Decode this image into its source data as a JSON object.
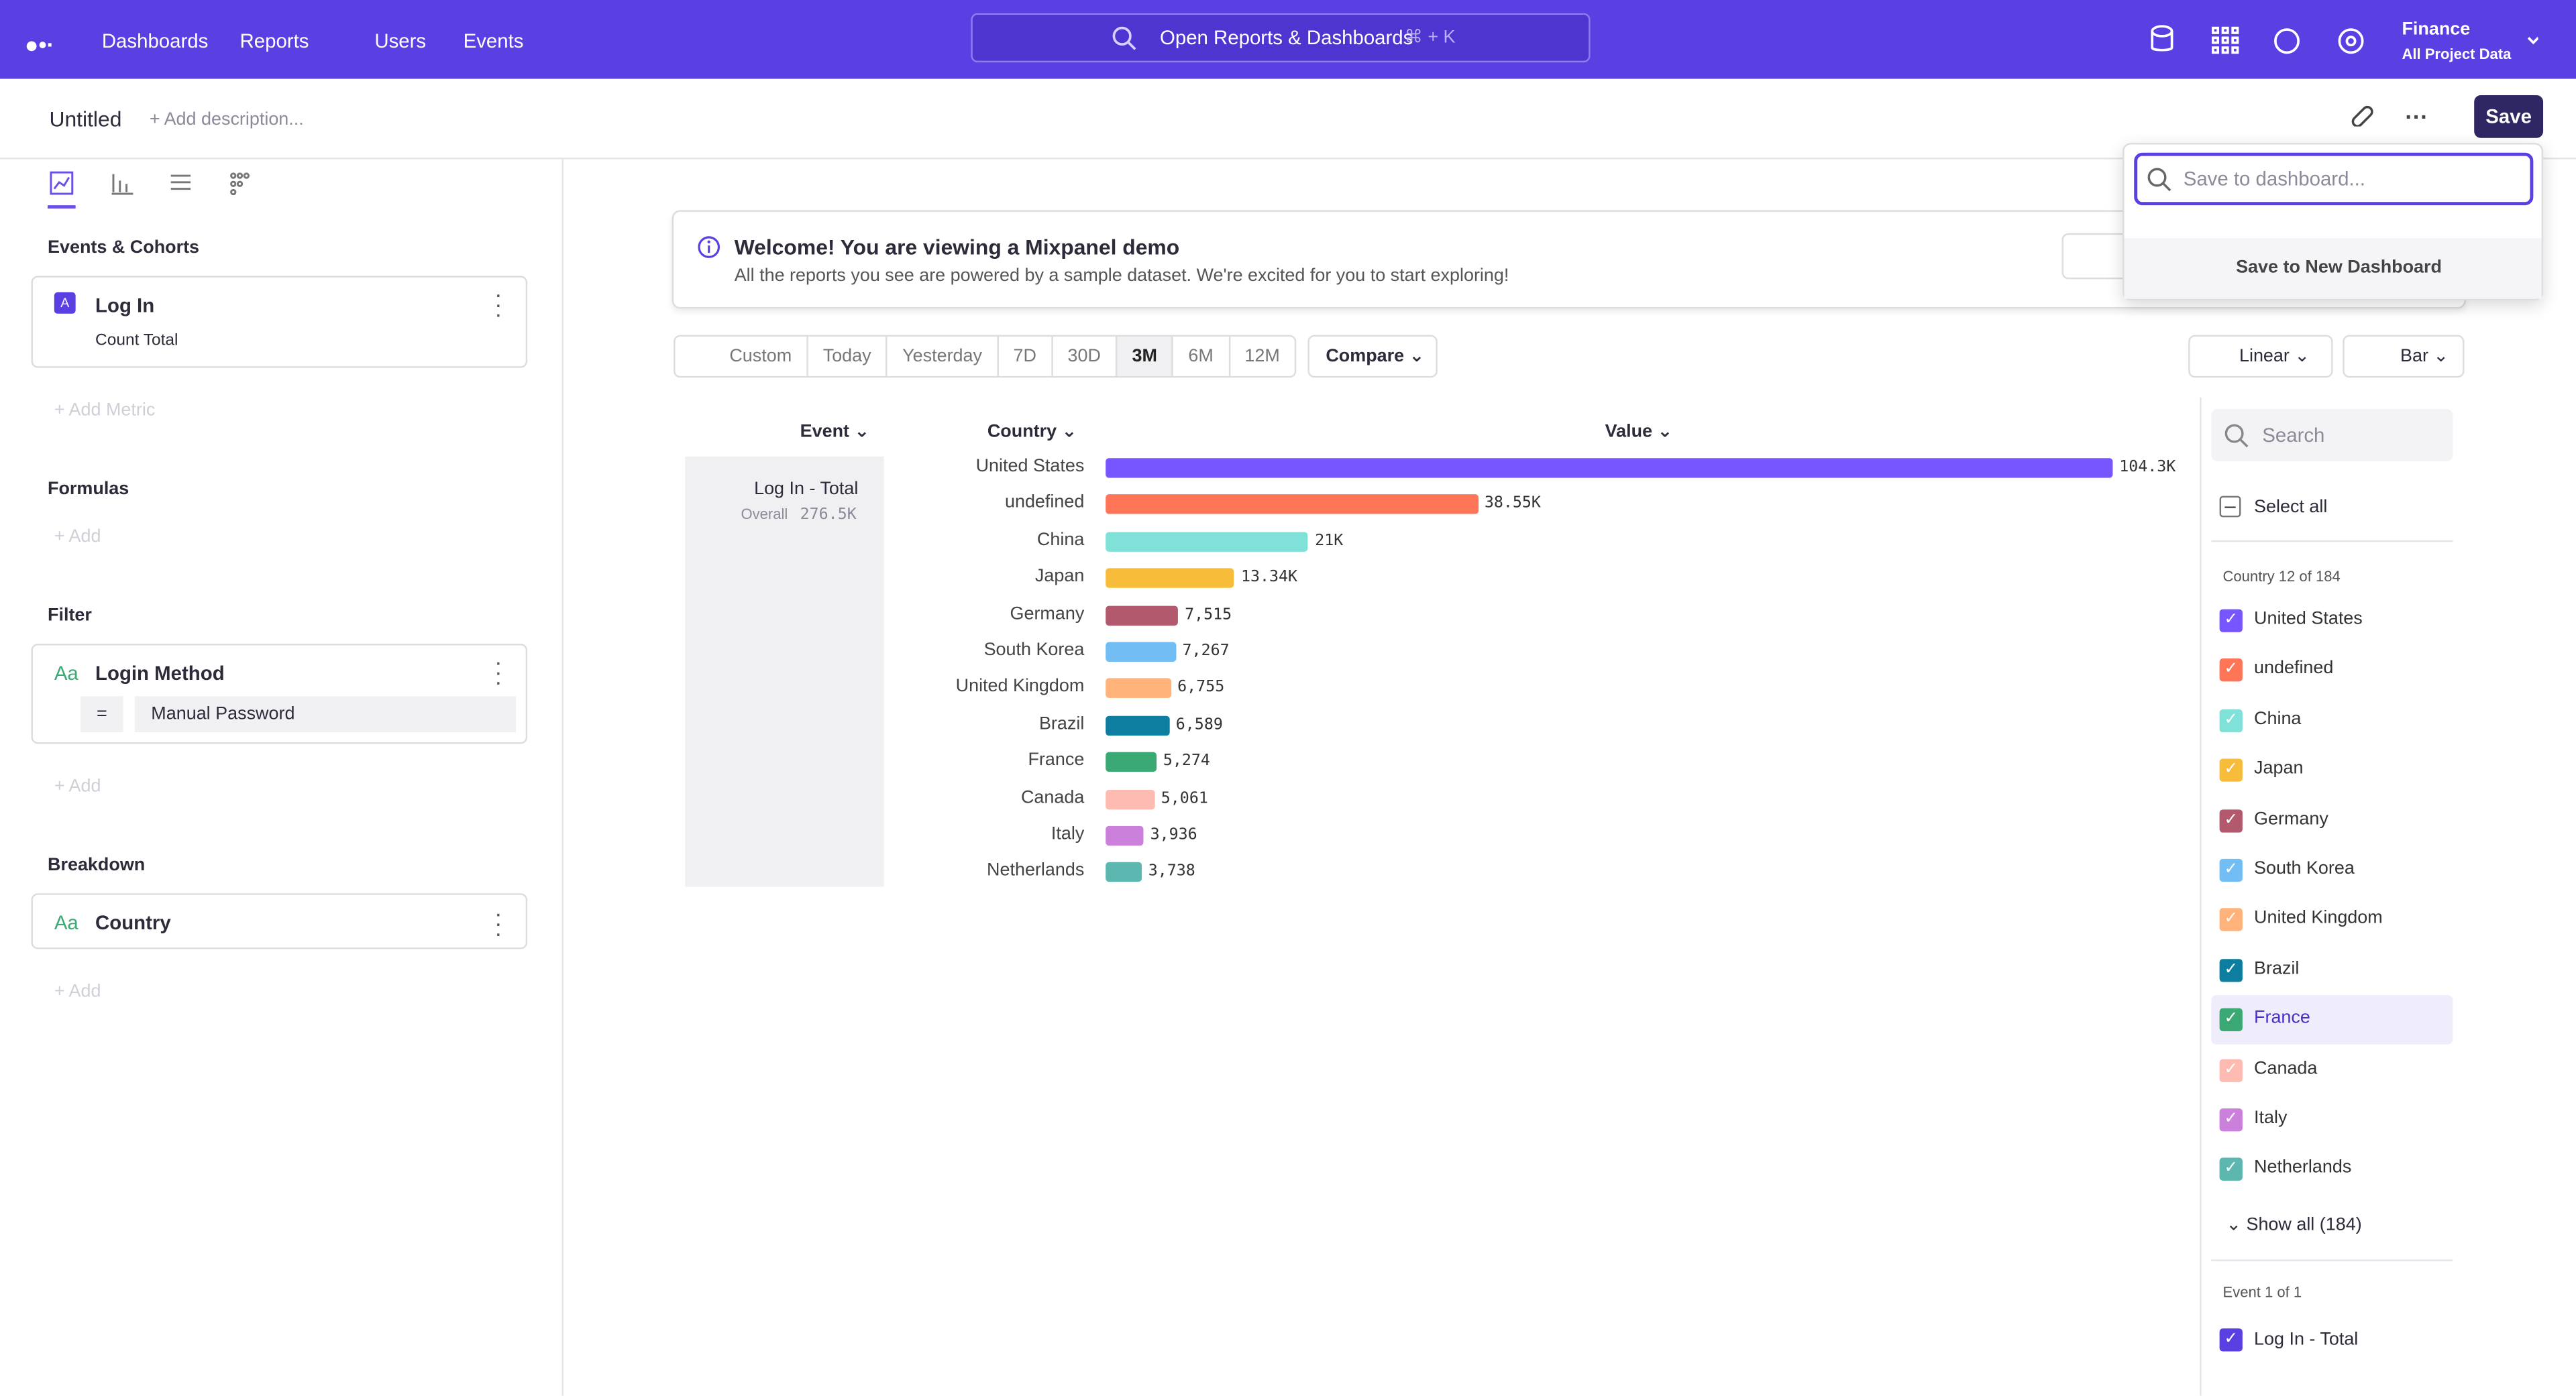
{
  "nav": {
    "items": [
      "Dashboards",
      "Reports",
      "Users",
      "Events"
    ],
    "search": "Open Reports & Dashboards",
    "shortcut": "⌘ + K",
    "project": "Finance",
    "scope": "All Project Data"
  },
  "header": {
    "title": "Untitled",
    "description": "+ Add description...",
    "save": "Save"
  },
  "save_menu": {
    "placeholder": "Save to dashboard...",
    "new_dashboard": "Save to New Dashboard"
  },
  "sidebar": {
    "events_heading": "Events & Cohorts",
    "metric": {
      "badge": "A",
      "name": "Log In",
      "measure": "Count Total"
    },
    "add_metric": "+ Add Metric",
    "formulas_heading": "Formulas",
    "add_formula": "+ Add",
    "filter_heading": "Filter",
    "filter": {
      "type": "Aa",
      "property": "Login Method",
      "operator": "=",
      "value": "Manual Password"
    },
    "add_filter": "+ Add",
    "breakdown_heading": "Breakdown",
    "breakdown": {
      "type": "Aa",
      "property": "Country"
    },
    "add_breakdown": "+ Add"
  },
  "banner": {
    "title": "Welcome! You are viewing a Mixpanel demo",
    "text": "All the reports you see are powered by a sample dataset. We're excited for you to start exploring!"
  },
  "controls": {
    "ranges": [
      "Custom",
      "Today",
      "Yesterday",
      "7D",
      "30D",
      "3M",
      "6M",
      "12M"
    ],
    "selected_index": 5,
    "compare": "Compare",
    "scale": "Linear",
    "chart_type": "Bar"
  },
  "table": {
    "columns": [
      "Event",
      "Country",
      "Value"
    ],
    "event": "Log In - Total",
    "overall_label": "Overall",
    "overall_value": "276.5K"
  },
  "chart": {
    "type": "bar",
    "categories": [
      "United States",
      "undefined",
      "China",
      "Japan",
      "Germany",
      "South Korea",
      "United Kingdom",
      "Brazil",
      "France",
      "Canada",
      "Italy",
      "Netherlands"
    ],
    "values": [
      104300,
      38550,
      21000,
      13340,
      7515,
      7267,
      6755,
      6589,
      5274,
      5061,
      3936,
      3738
    ],
    "value_labels": [
      "104.3K",
      "38.55K",
      "21K",
      "13.34K",
      "7,515",
      "7,267",
      "6,755",
      "6,589",
      "5,274",
      "5,061",
      "3,936",
      "3,738"
    ],
    "colors": [
      "#7856ff",
      "#ff7557",
      "#80e1d9",
      "#f8bc3b",
      "#b2596e",
      "#72bef4",
      "#ffb27a",
      "#0d7ea0",
      "#3ba974",
      "#febbb2",
      "#cb80dc",
      "#5bb7af"
    ]
  },
  "legend": {
    "search": "Search",
    "select_all": "Select all",
    "country_heading": "Country 12 of 184",
    "highlighted_index": 8,
    "show_all": "Show all (184)",
    "event_heading": "Event 1 of 1",
    "event": "Log In - Total"
  }
}
